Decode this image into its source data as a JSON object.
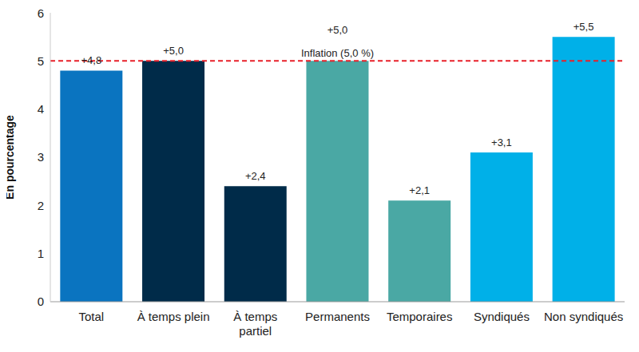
{
  "chart_data": {
    "type": "bar",
    "categories": [
      "Total",
      "À temps plein",
      "À temps partiel",
      "Permanents",
      "Temporaires",
      "Syndiqués",
      "Non syndiqués"
    ],
    "values": [
      4.8,
      5.0,
      2.4,
      5.0,
      2.1,
      3.1,
      5.5
    ],
    "value_labels": [
      "+4,8",
      "+5,0",
      "+2,4",
      "+5,0",
      "+2,1",
      "+3,1",
      "+5,5"
    ],
    "colors": [
      "#0a74c0",
      "#002b49",
      "#002b49",
      "#4aa8a4",
      "#4aa8a4",
      "#00b0e8",
      "#00b0e8"
    ],
    "y_label": "En pourcentage",
    "ylim": [
      0,
      6
    ],
    "yticks": [
      0,
      1,
      2,
      3,
      4,
      5,
      6
    ],
    "grid": false,
    "data_labels": true,
    "reference_line": {
      "value": 5.0,
      "label": "Inflation (5,0 %)",
      "color": "#e8202a",
      "line_style": "dashed"
    }
  }
}
